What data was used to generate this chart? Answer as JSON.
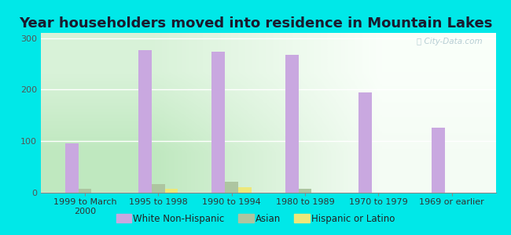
{
  "title": "Year householders moved into residence in Mountain Lakes",
  "categories": [
    "1999 to March\n2000",
    "1995 to 1998",
    "1990 to 1994",
    "1980 to 1989",
    "1970 to 1979",
    "1969 or earlier"
  ],
  "white_non_hispanic": [
    96,
    276,
    273,
    268,
    195,
    126
  ],
  "asian": [
    8,
    17,
    22,
    7,
    0,
    0
  ],
  "hispanic_or_latino": [
    0,
    7,
    10,
    0,
    0,
    0
  ],
  "bar_width": 0.18,
  "ylim": [
    0,
    310
  ],
  "yticks": [
    0,
    100,
    200,
    300
  ],
  "color_white": "#c9a8e0",
  "color_asian": "#adc5a0",
  "color_hispanic": "#ede87a",
  "bg_left": "#c8e8c0",
  "bg_right": "#f5fdf5",
  "outer_bg": "#00e8e8",
  "grid_color": "#ffffff",
  "watermark": "⭘ City-Data.com",
  "title_fontsize": 13,
  "tick_fontsize": 8,
  "legend_fontsize": 8.5
}
